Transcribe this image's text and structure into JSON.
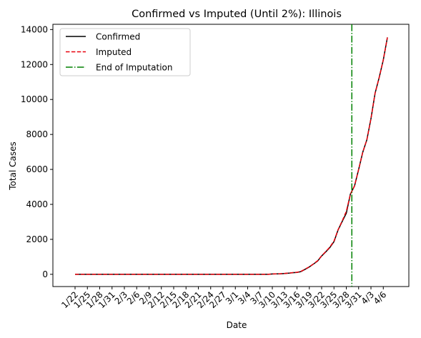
{
  "chart_data": {
    "type": "line",
    "title": "Confirmed vs Imputed (Until 2%): Illinois",
    "xlabel": "Date",
    "ylabel": "Total Cases",
    "ylim": [
      -700,
      14300
    ],
    "yticks": [
      0,
      2000,
      4000,
      6000,
      8000,
      10000,
      12000,
      14000
    ],
    "x_tick_labels": [
      "1/22",
      "1/25",
      "1/28",
      "1/31",
      "2/3",
      "2/6",
      "2/9",
      "2/12",
      "2/15",
      "2/18",
      "2/21",
      "2/24",
      "2/27",
      "3/1",
      "3/4",
      "3/7",
      "3/10",
      "3/13",
      "3/16",
      "3/19",
      "3/22",
      "3/25",
      "3/28",
      "3/31",
      "4/3",
      "4/6"
    ],
    "x": [
      "1/22",
      "1/23",
      "1/24",
      "1/25",
      "1/26",
      "1/27",
      "1/28",
      "1/29",
      "1/30",
      "1/31",
      "2/1",
      "2/2",
      "2/3",
      "2/4",
      "2/5",
      "2/6",
      "2/7",
      "2/8",
      "2/9",
      "2/10",
      "2/11",
      "2/12",
      "2/13",
      "2/14",
      "2/15",
      "2/16",
      "2/17",
      "2/18",
      "2/19",
      "2/20",
      "2/21",
      "2/22",
      "2/23",
      "2/24",
      "2/25",
      "2/26",
      "2/27",
      "2/28",
      "2/29",
      "3/1",
      "3/2",
      "3/3",
      "3/4",
      "3/5",
      "3/6",
      "3/7",
      "3/8",
      "3/9",
      "3/10",
      "3/11",
      "3/12",
      "3/13",
      "3/14",
      "3/15",
      "3/16",
      "3/17",
      "3/18",
      "3/19",
      "3/20",
      "3/21",
      "3/22",
      "3/23",
      "3/24",
      "3/25",
      "3/26",
      "3/27",
      "3/28",
      "3/29",
      "3/30",
      "3/31",
      "4/1",
      "4/2",
      "4/3",
      "4/4",
      "4/5",
      "4/6",
      "4/7"
    ],
    "series": [
      {
        "name": "Confirmed",
        "color": "#000000",
        "style": "solid",
        "values": [
          0,
          0,
          0,
          0,
          0,
          0,
          0,
          0,
          0,
          0,
          0,
          0,
          0,
          0,
          0,
          0,
          0,
          0,
          0,
          0,
          0,
          0,
          0,
          0,
          0,
          0,
          0,
          0,
          0,
          0,
          0,
          0,
          0,
          0,
          0,
          0,
          0,
          0,
          0,
          0,
          0,
          0,
          0,
          0,
          0,
          0,
          0,
          0,
          19,
          25,
          32,
          46,
          64,
          93,
          105,
          160,
          288,
          422,
          585,
          753,
          1049,
          1285,
          1535,
          1865,
          2538,
          3024,
          3491,
          4596,
          5057,
          5994,
          6980,
          7695,
          8904,
          10357,
          11256,
          12262,
          13549
        ]
      },
      {
        "name": "Imputed",
        "color": "#e8000b",
        "style": "dashed",
        "values": [
          0,
          0,
          0,
          0,
          0,
          0,
          0,
          0,
          0,
          0,
          0,
          0,
          0,
          0,
          0,
          0,
          0,
          0,
          0,
          0,
          0,
          0,
          0,
          0,
          0,
          0,
          0,
          0,
          0,
          0,
          0,
          0,
          0,
          0,
          0,
          0,
          0,
          0,
          0,
          0,
          0,
          0,
          0,
          0,
          0,
          0,
          0,
          0,
          20,
          27,
          35,
          50,
          68,
          98,
          115,
          170,
          300,
          430,
          595,
          770,
          1060,
          1300,
          1560,
          1900,
          2550,
          3050,
          3600,
          4580,
          5057,
          5994,
          6980,
          7695,
          8904,
          10357,
          11256,
          12262,
          13549
        ]
      }
    ],
    "vline": {
      "name": "End of Imputation",
      "x": "3/29",
      "color": "#008000",
      "style": "dashdot"
    },
    "legend": {
      "placement": "top-left",
      "entries": [
        {
          "label": "Confirmed",
          "color": "#000000",
          "style": "solid"
        },
        {
          "label": "Imputed",
          "color": "#e8000b",
          "style": "dashed"
        },
        {
          "label": "End of Imputation",
          "color": "#008000",
          "style": "dashdot"
        }
      ]
    },
    "grid": false
  }
}
